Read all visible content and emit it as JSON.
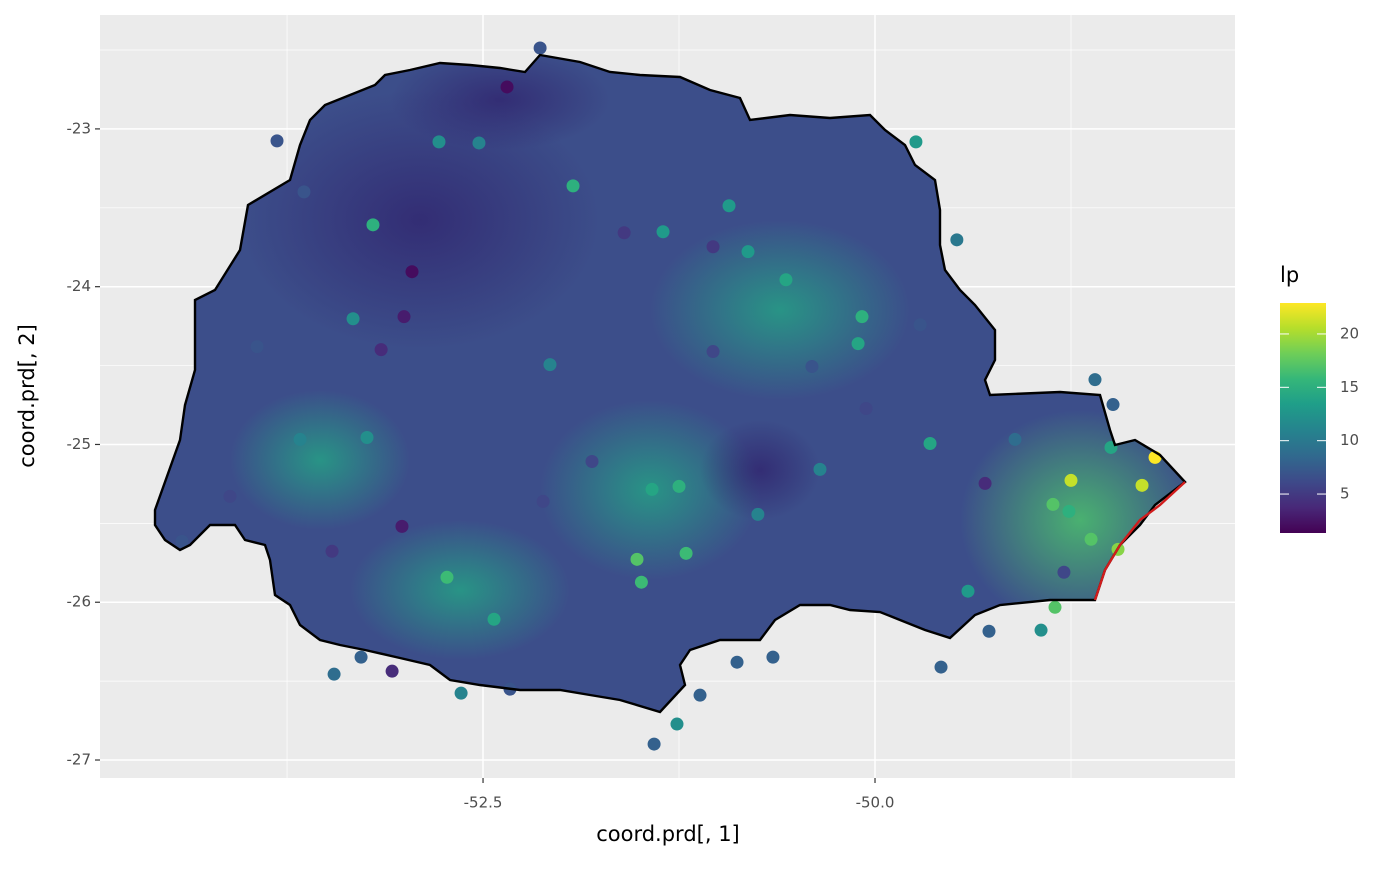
{
  "chart_data": {
    "type": "scatter",
    "x_label": "coord.prd[, 1]",
    "y_label": "coord.prd[, 2]",
    "legend_title": "lp",
    "colormap": "viridis",
    "x": [
      -52.347,
      -52.136,
      -53.814,
      -53.202,
      -52.953,
      -53.329,
      -53.15,
      -49.739,
      -49.478,
      -50.083,
      -50.108,
      -50.568,
      -50.81,
      -48.597,
      -48.482,
      -48.75,
      -48.214,
      -48.297,
      -48.865,
      -48.763,
      -48.622,
      -48.45,
      -48.795,
      -48.852,
      -48.941,
      -49.273,
      -49.579,
      -50.651,
      -50.88,
      -51.116,
      -51.263,
      -51.409,
      -52.328,
      -52.64,
      -53.08,
      -53.45,
      -53.278,
      -52.43,
      -52.73,
      -53.463,
      -53.24,
      -51.422,
      -51.25,
      -51.518,
      -51.205,
      -51.49,
      -51.805,
      -52.117,
      -51.926,
      -51.352,
      -51.033,
      -51.6,
      -49.712,
      -51.033,
      -52.526,
      -52.781,
      -50.931,
      -50.402,
      -49.649,
      -49.107,
      -48.495,
      -49.407,
      -50.057,
      -50.747,
      -53.642,
      -53.941,
      -54.114,
      -54.42,
      -53.017,
      -53.004,
      -49.298,
      -52.073,
      -50.351,
      -53.667
    ],
    "y": [
      -22.734,
      -22.487,
      -23.076,
      -23.608,
      -23.905,
      -24.203,
      -24.399,
      -23.082,
      -23.703,
      -24.19,
      -24.361,
      -23.956,
      -23.778,
      -24.589,
      -24.747,
      -25.228,
      -25.082,
      -25.259,
      -25.38,
      -25.424,
      -25.601,
      -25.665,
      -25.81,
      -26.032,
      -26.177,
      -26.184,
      -26.411,
      -26.348,
      -26.38,
      -26.589,
      -26.772,
      -26.899,
      -26.551,
      -26.576,
      -26.437,
      -26.456,
      -26.348,
      -26.108,
      -25.842,
      -25.677,
      -24.956,
      -25.285,
      -25.266,
      -25.728,
      -25.69,
      -25.873,
      -25.108,
      -25.361,
      -23.361,
      -23.652,
      -23.747,
      -23.658,
      -24.241,
      -24.411,
      -23.089,
      -23.082,
      -23.487,
      -24.506,
      -24.994,
      -24.968,
      -25.019,
      -25.93,
      -24.772,
      -25.443,
      -23.399,
      -24.38,
      -25.329,
      -25.614,
      -25.519,
      -24.19,
      -25.247,
      -24.494,
      -25.158,
      -24.968
    ],
    "values": [
      2,
      7,
      7,
      15,
      2,
      12,
      4,
      13,
      10,
      15,
      14,
      14,
      13,
      9,
      8,
      21,
      23,
      21,
      17,
      15,
      17,
      19,
      6,
      17,
      12,
      8,
      8,
      8,
      8,
      8,
      12,
      8,
      7,
      11,
      4,
      9,
      8,
      14,
      16,
      5,
      12,
      14,
      15,
      17,
      16,
      16,
      6,
      6,
      15,
      13,
      5,
      5,
      7,
      6,
      11,
      12,
      13,
      7,
      14,
      9,
      14,
      13,
      6,
      11,
      7,
      7,
      6,
      7,
      3,
      3,
      4,
      11,
      11,
      11
    ],
    "xlim": [
      -54.943,
      -47.704
    ],
    "ylim": [
      -27.114,
      -22.278
    ],
    "xticks": [
      -52.5,
      {
        "value": -50,
        "label": "-50.0"
      }
    ],
    "xminor": [
      -53.75,
      -51.25,
      -48.75
    ],
    "yticks": [
      -27,
      -26,
      -25,
      -24,
      -23
    ],
    "yminor": [
      -26.5,
      -25.5,
      -24.5,
      -23.5,
      -22.5
    ],
    "colorlim": [
      1.35,
      22.9
    ],
    "colorticks": [
      5,
      10,
      15,
      20
    ],
    "grid": true
  }
}
